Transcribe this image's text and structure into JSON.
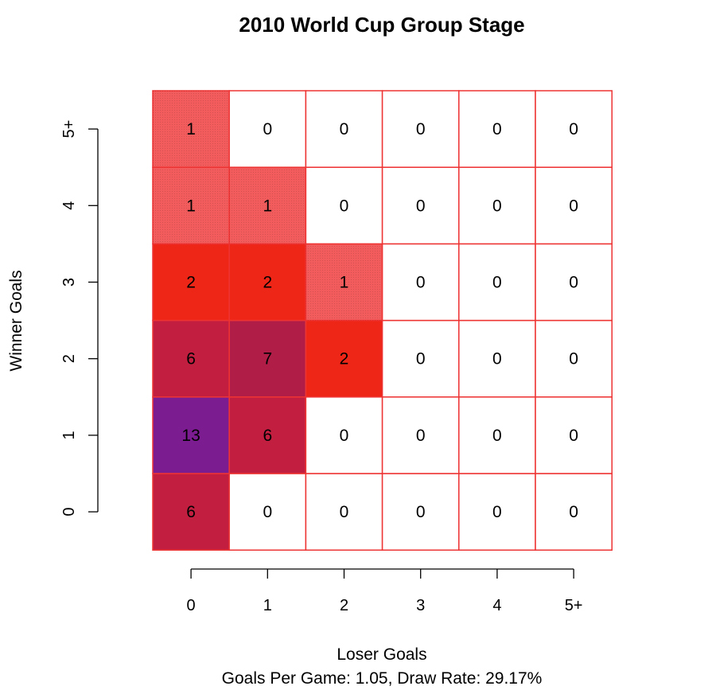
{
  "chart_data": {
    "type": "heatmap",
    "title": "2010 World Cup Group Stage",
    "xlabel": "Loser Goals",
    "ylabel": "Winner Goals",
    "subtitle": "Goals Per Game: 1.05, Draw Rate: 29.17%",
    "x_categories": [
      "0",
      "1",
      "2",
      "3",
      "4",
      "5+"
    ],
    "y_categories": [
      "0",
      "1",
      "2",
      "3",
      "4",
      "5+"
    ],
    "values": [
      [
        6,
        0,
        0,
        0,
        0,
        0
      ],
      [
        13,
        6,
        0,
        0,
        0,
        0
      ],
      [
        6,
        7,
        2,
        0,
        0,
        0
      ],
      [
        2,
        2,
        1,
        0,
        0,
        0
      ],
      [
        1,
        1,
        0,
        0,
        0,
        0
      ],
      [
        1,
        0,
        0,
        0,
        0,
        0
      ]
    ],
    "colors": {
      "border": "#ee3333",
      "axis": "#000000",
      "zero": "#ffffff",
      "v1": "#f25c5c",
      "v2": "#ee2617",
      "v6": "#c11e40",
      "v7": "#b01e48",
      "v13": "#7c1c91"
    }
  }
}
